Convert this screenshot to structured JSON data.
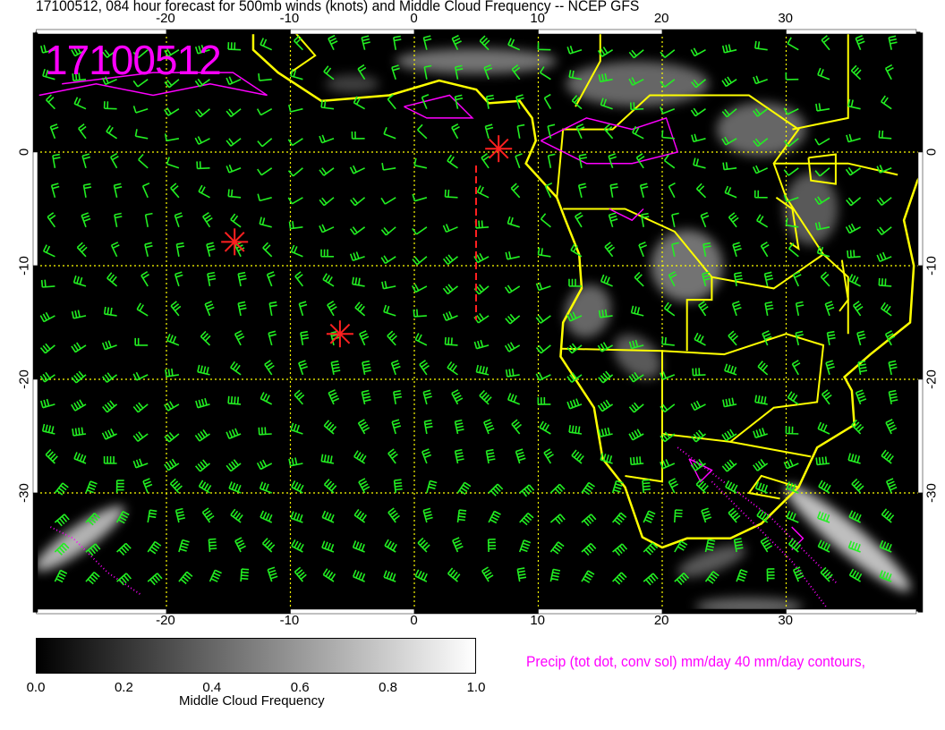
{
  "title": "17100512, 084 hour forecast for 500mb winds (knots) and Middle Cloud Frequency -- NCEP GFS",
  "date_stamp": "17100512",
  "map": {
    "lon_range": [
      -30.5,
      40.5
    ],
    "lat_range": [
      -40.5,
      10.5
    ],
    "lon_ticks": [
      "-20",
      "-10",
      "0",
      "10",
      "20",
      "30"
    ],
    "lat_ticks": [
      "0",
      "-10",
      "-20",
      "-30"
    ],
    "colors": {
      "background": "#000000",
      "coastline": "#ffff00",
      "wind_barbs": "#22ee22",
      "precip_contours": "#ff00ff",
      "markers": "#ff2020",
      "grid": "#ffff00"
    },
    "markers": [
      {
        "type": "star",
        "lon": -14.5,
        "lat": -7.9
      },
      {
        "type": "star",
        "lon": -6.0,
        "lat": -16.0
      },
      {
        "type": "star",
        "lon": 6.8,
        "lat": 0.3
      }
    ]
  },
  "colorbar": {
    "ticks": [
      "0.0",
      "0.2",
      "0.4",
      "0.6",
      "0.8",
      "1.0"
    ],
    "label": "Middle Cloud Frequency",
    "range": [
      0.0,
      1.0
    ]
  },
  "precip_label": "Precip (tot dot, conv sol) mm/day 40 mm/day contours,"
}
